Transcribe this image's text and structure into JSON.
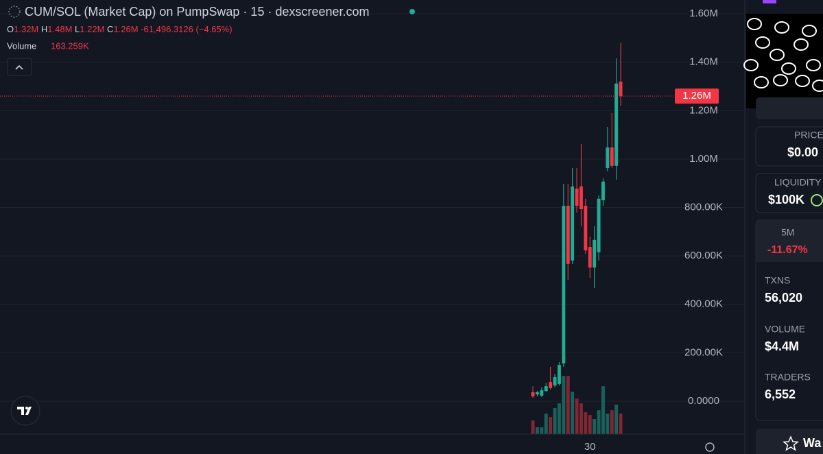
{
  "chart_data": {
    "type": "candlestick",
    "title": "CUM/SOL (Market Cap) on PumpSwap · 15 · dexscreener.com",
    "ohlc_keys": [
      "O",
      "H",
      "L",
      "C"
    ],
    "ohlc_labels": [
      "1.32M",
      "1.48M",
      "1.22M",
      "1.26M"
    ],
    "change_label": "-61,496.3126 (−4.65%)",
    "volume_title": "Volume",
    "volume_label": "163.259K",
    "categories": [
      null,
      null,
      null,
      null,
      null,
      null,
      null,
      null,
      null,
      null,
      null,
      null,
      null,
      "30",
      null,
      null,
      null,
      null,
      null,
      null,
      null
    ],
    "open": [
      37000,
      28000,
      23000,
      42000,
      79000,
      65000,
      71000,
      156000,
      807000,
      581000,
      878000,
      887000,
      807000,
      637000,
      552000,
      615000,
      830000,
      963000,
      1048000,
      972000,
      1320000
    ],
    "high": [
      62000,
      42000,
      57000,
      76000,
      142000,
      113000,
      161000,
      898000,
      898000,
      963000,
      963000,
      1062000,
      836000,
      680000,
      722000,
      850000,
      921000,
      1133000,
      1190000,
      1416000,
      1480000
    ],
    "low": [
      14000,
      20000,
      17000,
      37000,
      48000,
      57000,
      65000,
      142000,
      501000,
      567000,
      779000,
      722000,
      609000,
      510000,
      467000,
      581000,
      807000,
      949000,
      963000,
      915000,
      1220000
    ],
    "close": [
      20000,
      37000,
      45000,
      62000,
      54000,
      99000,
      150000,
      807000,
      567000,
      887000,
      807000,
      793000,
      623000,
      552000,
      666000,
      836000,
      907000,
      1048000,
      972000,
      1312000,
      1260000
    ],
    "volume": [
      109000,
      54000,
      54000,
      163000,
      136000,
      207000,
      245000,
      463000,
      463000,
      337000,
      283000,
      245000,
      174000,
      152000,
      120000,
      190000,
      381000,
      163000,
      190000,
      234000,
      163259
    ],
    "vlim": [
      0,
      600000
    ],
    "up_color": "#22ab94",
    "down_color": "#f23645",
    "ylim": [
      -136000,
      1657000
    ],
    "yticks": [
      {
        "value": 1600000,
        "label": "1.60M"
      },
      {
        "value": 1400000,
        "label": "1.40M"
      },
      {
        "value": 1200000,
        "label": "1.20M"
      },
      {
        "value": 1000000,
        "label": "1.00M"
      },
      {
        "value": 800000,
        "label": "800.00K"
      },
      {
        "value": 600000,
        "label": "600.00K"
      },
      {
        "value": 400000,
        "label": "400.00K"
      },
      {
        "value": 200000,
        "label": "200.00K"
      },
      {
        "value": 0,
        "label": "0.0000"
      }
    ],
    "grid": true,
    "last_price": {
      "value": 1260000,
      "label": "1.26M"
    }
  },
  "sidebar": {
    "price": {
      "label": "PRICE",
      "value": "$0.00"
    },
    "liquidity": {
      "label": "LIQUIDITY",
      "value": "$100K"
    },
    "change": {
      "label": "5M",
      "value": "-11.67%"
    },
    "txns": {
      "label": "TXNS",
      "value": "56,020"
    },
    "volume": {
      "label": "VOLUME",
      "value": "$4.4M"
    },
    "traders": {
      "label": "TRADERS",
      "value": "6,552"
    },
    "button": "Wa"
  }
}
